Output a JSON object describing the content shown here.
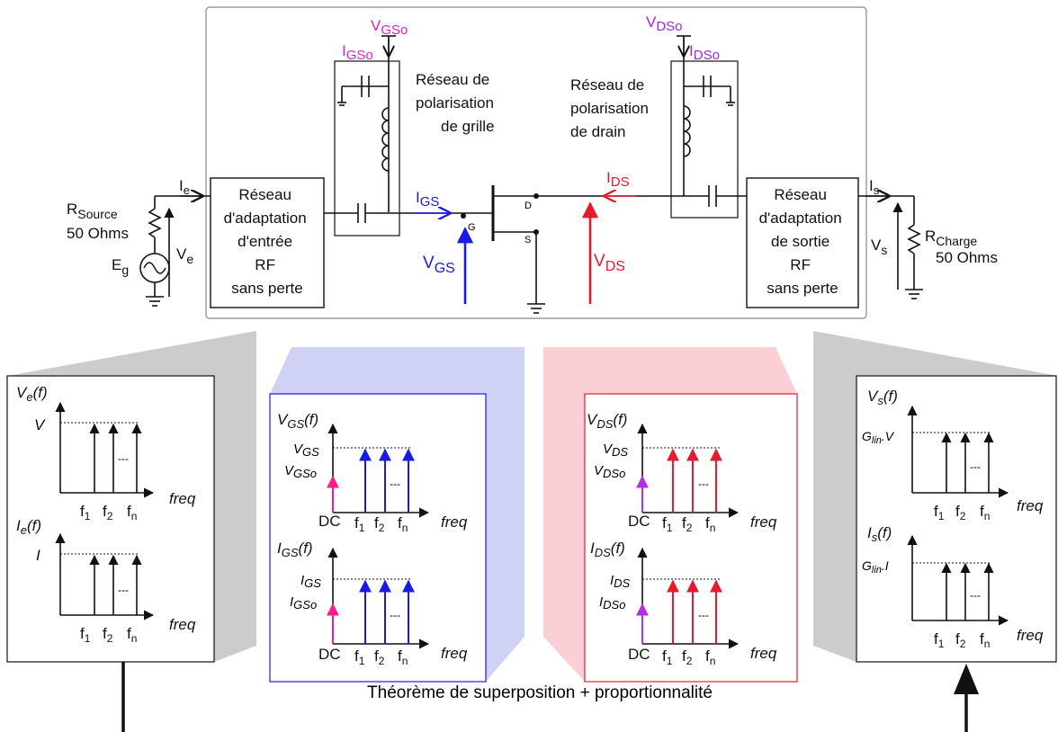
{
  "circuit": {
    "vgso_label": "V",
    "vgso_sub": "GSo",
    "igso_label": "I",
    "igso_sub": "GSo",
    "vdso_label": "V",
    "vdso_sub": "DSo",
    "idso_label": "I",
    "idso_sub": "DSo",
    "gate_bias_title": [
      "Réseau de",
      "polarisation",
      "de grille"
    ],
    "drain_bias_title": [
      "Réseau de",
      "polarisation",
      "de drain"
    ],
    "input_match": [
      "Réseau",
      "d'adaptation",
      "d'entrée",
      "RF",
      "sans perte"
    ],
    "output_match": [
      "Réseau",
      "d'adaptation",
      "de sortie",
      "RF",
      "sans perte"
    ],
    "ie_label": "I",
    "ie_sub": "e",
    "is_label": "I",
    "is_sub": "s",
    "rsource_label": "R",
    "rsource_sub": "Source",
    "rsource_value": "50 Ohms",
    "rcharge_label": "R",
    "rcharge_sub": "Charge",
    "rcharge_value": "50 Ohms",
    "eg_label": "E",
    "eg_sub": "g",
    "ve_label": "V",
    "ve_sub": "e",
    "vs_label": "V",
    "vs_sub": "s",
    "igs_label": "I",
    "igs_sub": "GS",
    "vgs_label": "V",
    "vgs_sub": "GS",
    "ids_label": "I",
    "ids_sub": "DS",
    "vds_label": "V",
    "vds_sub": "DS",
    "pin_g": "G",
    "pin_d": "D",
    "pin_s": "S"
  },
  "spectra": {
    "dc_label": "DC",
    "f1": "f",
    "f1_sub": "1",
    "f2": "f",
    "f2_sub": "2",
    "fn": "f",
    "fn_sub": "n",
    "freq_label": "freq",
    "dots": "---",
    "input": {
      "top_title": "V",
      "top_title_sub": "e",
      "top_title_suffix": "(f)",
      "top_level": "V",
      "bottom_title": "I",
      "bottom_title_sub": "e",
      "bottom_title_suffix": "(f)",
      "bottom_level": "I"
    },
    "gate": {
      "top_title": "V",
      "top_title_sub": "GS",
      "top_title_suffix": "(f)",
      "top_level": "V",
      "top_level_sub": "GS",
      "top_dc_level": "V",
      "top_dc_level_sub": "GSo",
      "bottom_title": "I",
      "bottom_title_sub": "GS",
      "bottom_title_suffix": "(f)",
      "bottom_level": "I",
      "bottom_level_sub": "GS",
      "bottom_dc_level": "I",
      "bottom_dc_level_sub": "GSo"
    },
    "drain": {
      "top_title": "V",
      "top_title_sub": "DS",
      "top_title_suffix": "(f)",
      "top_level": "V",
      "top_level_sub": "DS",
      "top_dc_level": "V",
      "top_dc_level_sub": "DSo",
      "bottom_title": "I",
      "bottom_title_sub": "DS",
      "bottom_title_suffix": "(f)",
      "bottom_level": "I",
      "bottom_level_sub": "DS",
      "bottom_dc_level": "I",
      "bottom_dc_level_sub": "DSo"
    },
    "output": {
      "top_title": "V",
      "top_title_sub": "s",
      "top_title_suffix": "(f)",
      "top_level": "G",
      "top_level_sub": "lin",
      "top_level_suffix": ".V",
      "bottom_title": "I",
      "bottom_title_sub": "s",
      "bottom_title_suffix": "(f)",
      "bottom_level": "G",
      "bottom_level_sub": "lin",
      "bottom_level_suffix": ".I"
    }
  },
  "caption": "Théorème de superposition + proportionnalité",
  "colors": {
    "gate": "#1a1ae6",
    "drain": "#e61a2e",
    "gate_bias": "#e020d0",
    "drain_bias": "#9a2ae0",
    "dc_gate_arrow": "#ff1a8c",
    "dc_drain_arrow": "#b030e0",
    "gate_panel": "#d0d2f5",
    "drain_panel": "#fad0d6",
    "side_panel": "#cccccc"
  }
}
